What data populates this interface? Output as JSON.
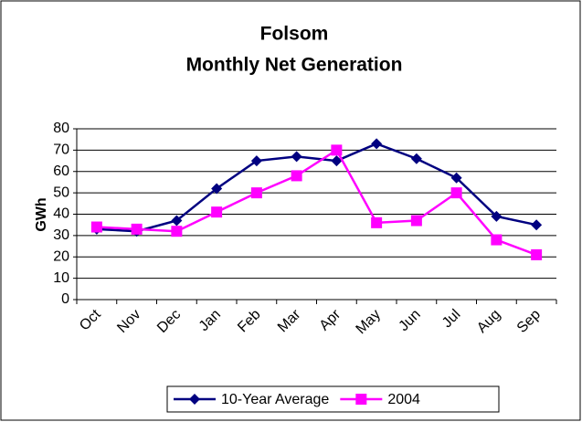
{
  "chart_data": {
    "type": "line",
    "title": "Folsom",
    "subtitle": "Monthly Net Generation",
    "y_label": "GWh",
    "categories": [
      "Oct",
      "Nov",
      "Dec",
      "Jan",
      "Feb",
      "Mar",
      "Apr",
      "May",
      "Jun",
      "Jul",
      "Aug",
      "Sep"
    ],
    "series": [
      {
        "name": "10-Year Average",
        "color": "#000080",
        "marker": "diamond",
        "values": [
          33,
          32,
          37,
          52,
          65,
          67,
          65,
          73,
          66,
          57,
          39,
          35
        ]
      },
      {
        "name": "2004",
        "color": "#ff00ff",
        "marker": "square",
        "values": [
          34,
          33,
          32,
          41,
          50,
          58,
          70,
          36,
          37,
          50,
          28,
          21
        ]
      }
    ],
    "ylim": [
      0,
      80
    ],
    "yticks": [
      0,
      10,
      20,
      30,
      40,
      50,
      60,
      70,
      80
    ],
    "grid": true,
    "legend": "bottom"
  }
}
